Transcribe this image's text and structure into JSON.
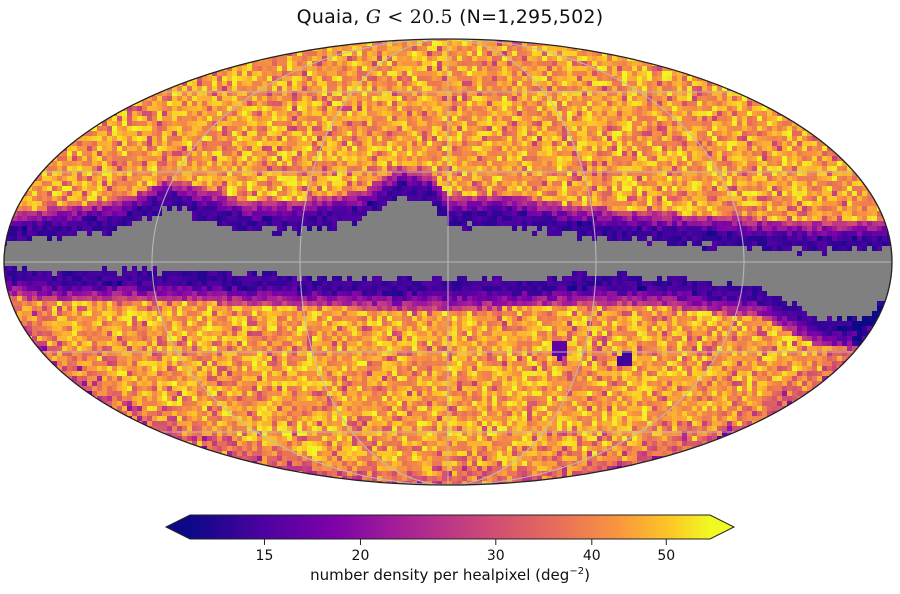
{
  "title": {
    "prefix": "Quaia, ",
    "variable": "G",
    "relation": " < ",
    "threshold": "20.5",
    "count": " (N=1,295,502)"
  },
  "colorbar": {
    "colormap": "plasma",
    "min": 12,
    "max": 57,
    "scale": "log",
    "extend": "both",
    "ticks": [
      {
        "value": 15,
        "label": "15"
      },
      {
        "value": 20,
        "label": "20"
      },
      {
        "value": 30,
        "label": "30"
      },
      {
        "value": 40,
        "label": "40"
      },
      {
        "value": 50,
        "label": "50"
      }
    ],
    "label_text": "number density per healpixel (deg",
    "label_exp": "−2",
    "label_close": ")"
  },
  "map": {
    "projection": "mollweide",
    "graticule": true,
    "masked_color": "#808080",
    "graticule_color": "#bdbdbd"
  }
}
